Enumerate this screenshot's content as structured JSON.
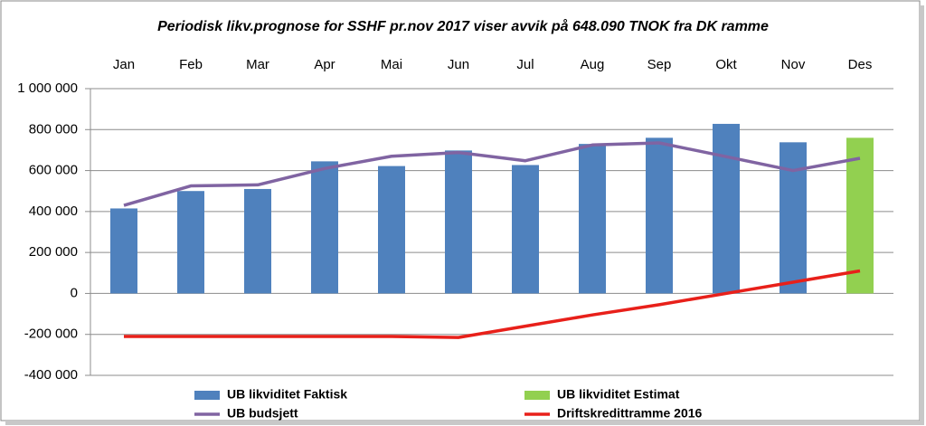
{
  "chart_data": {
    "type": "bar",
    "title": "Periodisk likv.prognose for SSHF pr.nov 2017 viser avvik på 648.090 TNOK fra DK ramme",
    "categories": [
      "Jan",
      "Feb",
      "Mar",
      "Apr",
      "Mai",
      "Jun",
      "Jul",
      "Aug",
      "Sep",
      "Okt",
      "Nov",
      "Des"
    ],
    "series": [
      {
        "name": "UB likviditet Faktisk",
        "type": "bar",
        "color": "#4f81bd",
        "values": [
          415000,
          500000,
          510000,
          645000,
          622000,
          698000,
          627000,
          730000,
          760000,
          828000,
          738000,
          null
        ]
      },
      {
        "name": "UB likviditet Estimat",
        "type": "bar",
        "color": "#92d050",
        "values": [
          null,
          null,
          null,
          null,
          null,
          null,
          null,
          null,
          null,
          null,
          null,
          760000
        ]
      },
      {
        "name": "UB budsjett",
        "type": "line",
        "color": "#8064a2",
        "values": [
          430000,
          525000,
          530000,
          610000,
          670000,
          688000,
          648000,
          725000,
          735000,
          668000,
          600000,
          660000
        ]
      },
      {
        "name": "Driftskredittramme 2016",
        "type": "line",
        "color": "#e8201a",
        "values": [
          -210000,
          -210000,
          -210000,
          -210000,
          -210000,
          -215000,
          -160000,
          -105000,
          -55000,
          0,
          55000,
          110000
        ]
      }
    ],
    "ylim": [
      -400000,
      1000000
    ],
    "yticks": [
      {
        "value": -400000,
        "label": "-400 000"
      },
      {
        "value": -200000,
        "label": "-200 000"
      },
      0,
      {
        "value": 200000,
        "label": "200 000"
      },
      {
        "value": 400000,
        "label": "400 000"
      },
      {
        "value": 600000,
        "label": "600 000"
      },
      {
        "value": 800000,
        "label": "800 000"
      },
      {
        "value": 1000000,
        "label": "1 000 000"
      }
    ],
    "grid": true
  }
}
